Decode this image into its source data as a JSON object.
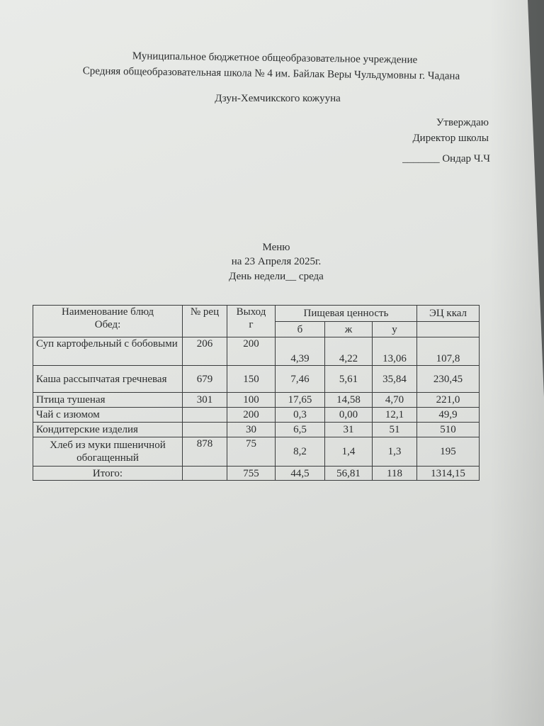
{
  "header": {
    "line1": "Муниципальное бюджетное общеобразовательное учреждение",
    "line2": "Средняя общеобразовательная школа № 4 им. Байлак Веры Чульдумовны г. Чадана",
    "line3": "Дзун-Хемчикского кожууна"
  },
  "approval": {
    "approve": "Утверждаю",
    "position": "Директор школы",
    "signature": "_______ Ондар Ч.Ч"
  },
  "title": {
    "menu": "Меню",
    "date": "на 23 Апреля 2025г.",
    "weekday": "День недели__ среда"
  },
  "table": {
    "headers": {
      "name": "Наименование блюд",
      "meal": "Обед:",
      "recipe": "№ рец",
      "output": "Выход",
      "output_unit": "г",
      "nutrition": "Пищевая ценность",
      "protein": "б",
      "fat": "ж",
      "carbs": "у",
      "energy": "ЭЦ ккал"
    },
    "rows": [
      {
        "name": "Суп картофельный с бобовыми",
        "recipe": "206",
        "output": "200",
        "protein": "4,39",
        "fat": "4,22",
        "carbs": "13,06",
        "energy": "107,8"
      },
      {
        "name": "Каша рассыпчатая гречневая",
        "recipe": "679",
        "output": "150",
        "protein": "7,46",
        "fat": "5,61",
        "carbs": "35,84",
        "energy": "230,45"
      },
      {
        "name": "Птица тушеная",
        "recipe": "301",
        "output": "100",
        "protein": "17,65",
        "fat": "14,58",
        "carbs": "4,70",
        "energy": "221,0"
      },
      {
        "name": "Чай с изюмом",
        "recipe": "",
        "output": "200",
        "protein": "0,3",
        "fat": "0,00",
        "carbs": "12,1",
        "energy": "49,9"
      },
      {
        "name": "Кондитерские изделия",
        "recipe": "",
        "output": "30",
        "protein": "6,5",
        "fat": "31",
        "carbs": "51",
        "energy": "510"
      },
      {
        "name": "Хлеб из муки пшеничной обогащенный",
        "recipe": "878",
        "output": "75",
        "protein": "8,2",
        "fat": "1,4",
        "carbs": "1,3",
        "energy": "195"
      }
    ],
    "total": {
      "label": "Итого:",
      "output": "755",
      "protein": "44,5",
      "fat": "56,81",
      "carbs": "118",
      "energy": "1314,15"
    }
  }
}
